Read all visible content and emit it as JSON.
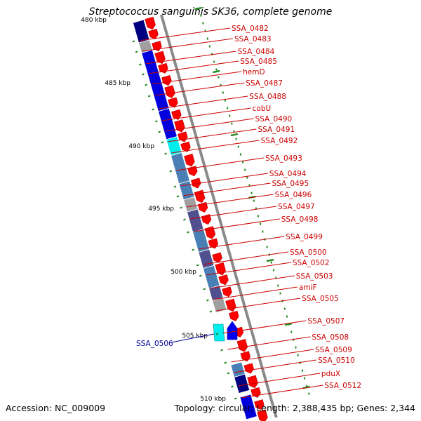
{
  "title": "Streptococcus sanguinis SK36, complete genome",
  "footer": {
    "accession": "Accession: NC_009009",
    "stats": "Topology: circular; Length: 2,388,435 bp; Genes: 2,344"
  },
  "colors": {
    "backbone": "#8a8a8a",
    "gene_forward": "#ff0000",
    "gene_reverse": "#0000ff",
    "label_forward": "#cc0000",
    "label_reverse": "#000099",
    "tick": "#228B22",
    "cog_blue": "#0000dd",
    "cog_navy": "#000080",
    "cog_steel": "#4a7fb5",
    "cog_cyan": "#00eeee",
    "cog_gray": "#a0a0a0",
    "cog_slate": "#505090"
  },
  "scale": {
    "major_ticks": [
      "480 kbp",
      "485 kbp",
      "490 kbp",
      "495 kbp",
      "500 kbp",
      "505 kbp",
      "510 kbp"
    ]
  },
  "genes": [
    {
      "label": "SSA_0482",
      "strand": "forward"
    },
    {
      "label": "SSA_0483",
      "strand": "forward"
    },
    {
      "label": "SSA_0484",
      "strand": "forward"
    },
    {
      "label": "SSA_0485",
      "strand": "forward"
    },
    {
      "label": "hemD",
      "strand": "forward"
    },
    {
      "label": "SSA_0487",
      "strand": "forward"
    },
    {
      "label": "SSA_0488",
      "strand": "forward"
    },
    {
      "label": "cobU",
      "strand": "forward"
    },
    {
      "label": "SSA_0490",
      "strand": "forward"
    },
    {
      "label": "SSA_0491",
      "strand": "forward"
    },
    {
      "label": "SSA_0492",
      "strand": "forward"
    },
    {
      "label": "SSA_0493",
      "strand": "forward"
    },
    {
      "label": "SSA_0494",
      "strand": "forward"
    },
    {
      "label": "SSA_0495",
      "strand": "forward"
    },
    {
      "label": "SSA_0496",
      "strand": "forward"
    },
    {
      "label": "SSA_0497",
      "strand": "forward"
    },
    {
      "label": "SSA_0498",
      "strand": "forward"
    },
    {
      "label": "SSA_0499",
      "strand": "forward"
    },
    {
      "label": "SSA_0500",
      "strand": "forward"
    },
    {
      "label": "SSA_0502",
      "strand": "forward"
    },
    {
      "label": "SSA_0503",
      "strand": "forward"
    },
    {
      "label": "amiF",
      "strand": "forward"
    },
    {
      "label": "SSA_0505",
      "strand": "forward"
    },
    {
      "label": "SSA_0506",
      "strand": "reverse"
    },
    {
      "label": "SSA_0507",
      "strand": "forward"
    },
    {
      "label": "SSA_0508",
      "strand": "forward"
    },
    {
      "label": "SSA_0509",
      "strand": "forward"
    },
    {
      "label": "SSA_0510",
      "strand": "forward"
    },
    {
      "label": "pduX",
      "strand": "forward"
    },
    {
      "label": "SSA_0512",
      "strand": "forward"
    }
  ]
}
